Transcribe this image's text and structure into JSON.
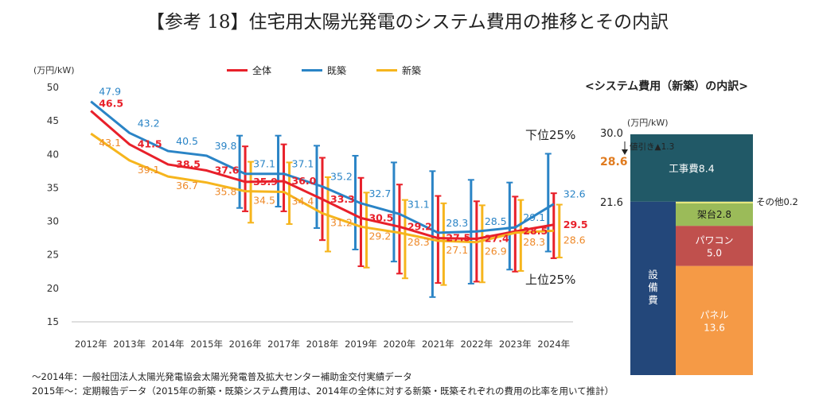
{
  "title": "【参考 18】住宅用太陽光発電のシステム費用の推移とその内訳",
  "chart_data": [
    {
      "type": "line",
      "unit_label": "(万円/kW)",
      "categories": [
        "2012年",
        "2013年",
        "2014年",
        "2015年",
        "2016年",
        "2017年",
        "2018年",
        "2019年",
        "2020年",
        "2021年",
        "2022年",
        "2023年",
        "2024年"
      ],
      "yticks": [
        "50",
        "45",
        "40",
        "35",
        "30",
        "25",
        "20",
        "15"
      ],
      "ylim": [
        15,
        50
      ],
      "colors": {
        "overall": "#e8202a",
        "existing": "#2a84c6",
        "new": "#f6b51d",
        "new_label": "#ee8a2a"
      },
      "series": [
        {
          "name": "全体",
          "key": "overall",
          "values": [
            46.5,
            41.5,
            38.5,
            37.6,
            35.9,
            36.0,
            33.3,
            30.5,
            29.2,
            27.5,
            27.4,
            28.5,
            29.5
          ],
          "labels": [
            "46.5",
            "41.5",
            "38.5",
            "37.6",
            "35.9",
            "36.0",
            "33.3",
            "30.5",
            "29.2",
            "27.5",
            "27.4",
            "28.5",
            "29.5"
          ]
        },
        {
          "name": "既築",
          "key": "existing",
          "values": [
            47.9,
            43.2,
            40.5,
            39.8,
            37.1,
            37.1,
            35.2,
            32.7,
            31.1,
            28.3,
            28.5,
            29.1,
            32.6
          ],
          "labels": [
            "47.9",
            "43.2",
            "40.5",
            "39.8",
            "37.1",
            "37.1",
            "35.2",
            "32.7",
            "31.1",
            "28.3",
            "28.5",
            "29.1",
            "32.6"
          ]
        },
        {
          "name": "新築",
          "key": "new",
          "values": [
            43.1,
            39.1,
            36.7,
            35.8,
            34.5,
            34.4,
            31.2,
            29.2,
            28.3,
            27.1,
            26.9,
            28.3,
            28.6
          ],
          "labels": [
            "43.1",
            "39.1",
            "36.7",
            "35.8",
            "34.5",
            "34.4",
            "31.2",
            "29.2",
            "28.3",
            "27.1",
            "26.9",
            "28.3",
            "28.6"
          ]
        }
      ],
      "error_bars": {
        "overall": [
          null,
          null,
          null,
          null,
          [
            31.5,
            41.2
          ],
          [
            31.5,
            41.5
          ],
          [
            27.2,
            39.5
          ],
          [
            23.3,
            36.5
          ],
          [
            22.2,
            35.5
          ],
          [
            20.8,
            33.8
          ],
          [
            21.0,
            33.0
          ],
          [
            22.5,
            33.7
          ],
          [
            24.5,
            34.2
          ]
        ],
        "existing": [
          null,
          null,
          null,
          null,
          [
            32.0,
            42.8
          ],
          [
            32.2,
            42.8
          ],
          [
            29.0,
            41.3
          ],
          [
            25.8,
            39.8
          ],
          [
            24.0,
            38.8
          ],
          [
            18.7,
            37.5
          ],
          [
            20.7,
            36.2
          ],
          [
            22.8,
            35.8
          ],
          [
            25.5,
            40.1
          ]
        ],
        "new": [
          null,
          null,
          null,
          null,
          [
            29.8,
            38.9
          ],
          [
            29.6,
            38.8
          ],
          [
            25.5,
            36.6
          ],
          [
            23.1,
            34.3
          ],
          [
            21.5,
            33.2
          ],
          [
            20.5,
            32.7
          ],
          [
            20.9,
            32.4
          ],
          [
            22.6,
            33.2
          ],
          [
            24.6,
            32.5
          ]
        ]
      },
      "annotations": {
        "upper": "下位25%",
        "lower": "上位25%"
      }
    },
    {
      "type": "bar",
      "title": "<システム費用（新築）の内訳>",
      "unit_label": "(万円/kW)",
      "total_label": "30.0",
      "discount_label": "値引き▲1.3",
      "net_label": "28.6",
      "left_label": "21.6",
      "segments": [
        {
          "name": "設備費",
          "value": 21.6,
          "color": "#23477a"
        },
        {
          "name": "工事費",
          "value": 8.4,
          "label": "工事費8.4",
          "color": "#215967"
        }
      ],
      "equipment_breakdown": [
        {
          "name": "パネル",
          "value": 13.6,
          "label_name": "パネル",
          "label_value": "13.6",
          "color": "#f59a46"
        },
        {
          "name": "パワコン",
          "value": 5.0,
          "label_name": "パワコン",
          "label_value": "5.0",
          "color": "#c0504d"
        },
        {
          "name": "架台",
          "value": 2.8,
          "label": "架台2.8",
          "color": "#9bbb59"
        },
        {
          "name": "その他",
          "value": 0.2,
          "label": "その他0.2",
          "color": "#e8e87a"
        }
      ]
    }
  ],
  "notes": [
    "～2014年：一般社団法人太陽光発電協会太陽光発電普及拡大センター補助金交付実績データ",
    "2015年～：定期報告データ（2015年の新築・既築システム費用は、2014年の全体に対する新築・既築それぞれの費用の比率を用いて推計）"
  ]
}
